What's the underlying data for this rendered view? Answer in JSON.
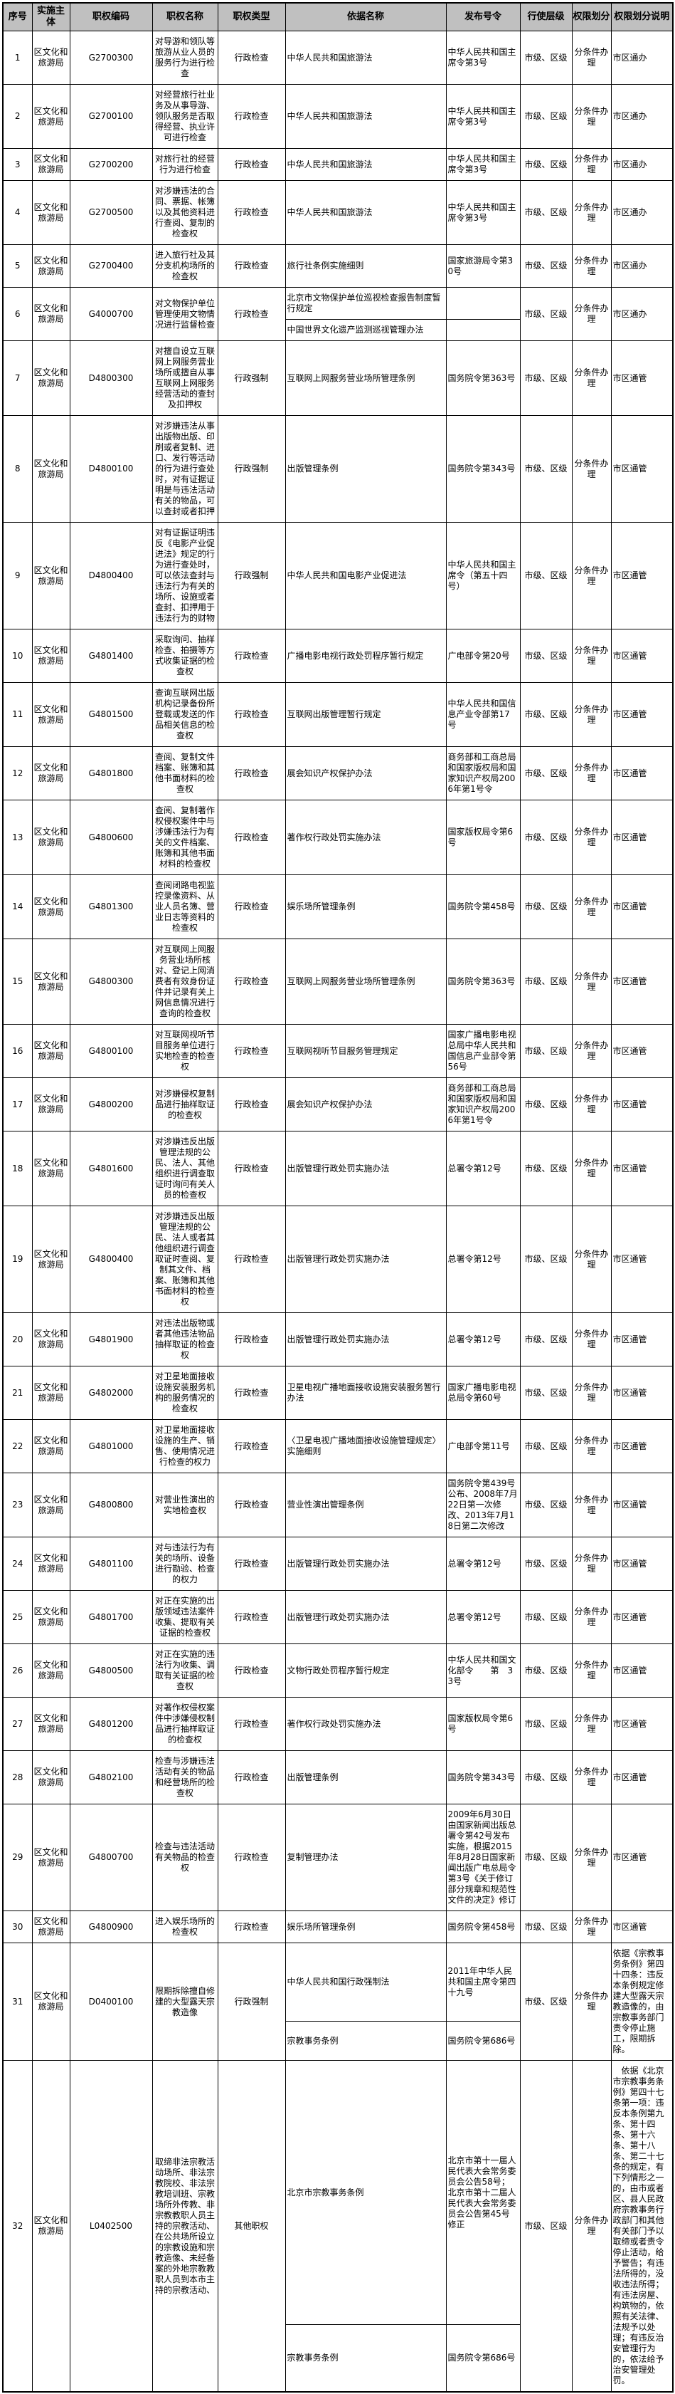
{
  "colors": {
    "header_bg": "#c0c0c0",
    "border": "#000000",
    "text": "#000000",
    "page_bg": "#ffffff"
  },
  "table": {
    "columns": [
      "序号",
      "实施主体",
      "职权编码",
      "职权名称",
      "职权类型",
      "依据名称",
      "发布号令",
      "行使层级",
      "权限划分",
      "权限划分说明"
    ],
    "rows": [
      {
        "no": "1",
        "agency": "区文化和旅游局",
        "code": "G2700300",
        "name": "对导游和领队等旅游从业人员的服务行为进行检查",
        "type": "行政检查",
        "basis": [
          {
            "name": "中华人民共和国旅游法",
            "order": "中华人民共和国主席令第3号"
          }
        ],
        "level": "市级、区级",
        "division": "分条件办理",
        "note": "市区通办"
      },
      {
        "no": "2",
        "agency": "区文化和旅游局",
        "code": "G2700100",
        "name": "对经营旅行社业务及从事导游、领队服务是否取得经营、执业许可进行检查",
        "type": "行政检查",
        "basis": [
          {
            "name": "中华人民共和国旅游法",
            "order": "中华人民共和国主席令第3号"
          }
        ],
        "level": "市级、区级",
        "division": "分条件办理",
        "note": "市区通办"
      },
      {
        "no": "3",
        "agency": "区文化和旅游局",
        "code": "G2700200",
        "name": "对旅行社的经营行为进行检查",
        "type": "行政检查",
        "basis": [
          {
            "name": "中华人民共和国旅游法",
            "order": "中华人民共和国主席令第3号"
          }
        ],
        "level": "市级、区级",
        "division": "分条件办理",
        "note": "市区通办"
      },
      {
        "no": "4",
        "agency": "区文化和旅游局",
        "code": "G2700500",
        "name": "对涉嫌违法的合同、票据、帐簿以及其他资料进行查阅、复制的检查权",
        "type": "行政检查",
        "basis": [
          {
            "name": "中华人民共和国旅游法",
            "order": "中华人民共和国主席令第3号"
          }
        ],
        "level": "市级、区级",
        "division": "分条件办理",
        "note": "市区通办"
      },
      {
        "no": "5",
        "agency": "区文化和旅游局",
        "code": "G2700400",
        "name": "进入旅行社及其分支机构场所的检查权",
        "type": "行政检查",
        "basis": [
          {
            "name": "旅行社条例实施细则",
            "order": "国家旅游局令第30号"
          }
        ],
        "level": "市级、区级",
        "division": "分条件办理",
        "note": "市区通办"
      },
      {
        "no": "6",
        "agency": "区文化和旅游局",
        "code": "G4000700",
        "name": "对文物保护单位管理使用文物情况进行监督检查",
        "type": "行政检查",
        "basis": [
          {
            "name": "北京市文物保护单位巡视检查报告制度暂行规定",
            "order": ""
          },
          {
            "name": "中国世界文化遗产监测巡视管理办法",
            "order": ""
          }
        ],
        "level": "市级、区级",
        "division": "分条件办理",
        "note": "市区通办"
      },
      {
        "no": "7",
        "agency": "区文化和旅游局",
        "code": "D4800300",
        "name": "对擅自设立互联网上网服务营业场所或擅自从事互联网上网服务经营活动的查封及扣押权",
        "type": "行政强制",
        "basis": [
          {
            "name": "互联网上网服务营业场所管理条例",
            "order": "国务院令第363号"
          }
        ],
        "level": "市级、区级",
        "division": "分条件办理",
        "note": "市区通管"
      },
      {
        "no": "8",
        "agency": "区文化和旅游局",
        "code": "D4800100",
        "name": "对涉嫌违法从事出版物出版、印刷或者复制、进口、发行等活动的行为进行查处时，对有证据证明是与违法活动有关的物品，可以查封或者扣押",
        "type": "行政强制",
        "basis": [
          {
            "name": "出版管理条例",
            "order": "国务院令第343号"
          }
        ],
        "level": "市级、区级",
        "division": "分条件办理",
        "note": "市区通管"
      },
      {
        "no": "9",
        "agency": "区文化和旅游局",
        "code": "D4800400",
        "name": "对有证据证明违反《电影产业促进法》规定的行为进行查处时，可以依法查封与违法行为有关的场所、设施或者查封、扣押用于违法行为的财物",
        "type": "行政强制",
        "basis": [
          {
            "name": "中华人民共和国电影产业促进法",
            "order": "中华人民共和国主席令（第五十四号）"
          }
        ],
        "level": "市级、区级",
        "division": "分条件办理",
        "note": "市区通管"
      },
      {
        "no": "10",
        "agency": "区文化和旅游局",
        "code": "G4801400",
        "name": "采取询问、抽样检查、拍摄等方式收集证据的检查权",
        "type": "行政检查",
        "basis": [
          {
            "name": "广播电影电视行政处罚程序暂行规定",
            "order": "广电部令第20号"
          }
        ],
        "level": "市级、区级",
        "division": "分条件办理",
        "note": "市区通管"
      },
      {
        "no": "11",
        "agency": "区文化和旅游局",
        "code": "G4801500",
        "name": "查询互联网出版机构记录备份所登载或发送的作品相关信息的检查权",
        "type": "行政检查",
        "basis": [
          {
            "name": "互联网出版管理暂行规定",
            "order": "中华人民共和国信息产业令部第17　号"
          }
        ],
        "level": "市级、区级",
        "division": "分条件办理",
        "note": "市区通管"
      },
      {
        "no": "12",
        "agency": "区文化和旅游局",
        "code": "G4801800",
        "name": "查阅、复制文件档案、账簿和其他书面材料的检查权",
        "type": "行政检查",
        "basis": [
          {
            "name": "展会知识产权保护办法",
            "order": "商务部和工商总局和国家版权局和国家知识产权局2006年第1号令"
          }
        ],
        "level": "市级、区级",
        "division": "分条件办理",
        "note": "市区通管"
      },
      {
        "no": "13",
        "agency": "区文化和旅游局",
        "code": "G4800600",
        "name": "查阅、复制著作权侵权案件中与涉嫌违法行为有关的文件档案、账簿和其他书面材料的检查权",
        "type": "行政检查",
        "basis": [
          {
            "name": "著作权行政处罚实施办法",
            "order": "国家版权局令第6号"
          }
        ],
        "level": "市级、区级",
        "division": "分条件办理",
        "note": "市区通管"
      },
      {
        "no": "14",
        "agency": "区文化和旅游局",
        "code": "G4801300",
        "name": "查阅闭路电视监控录像资料、从业人员名簿、营业日志等资料的检查权",
        "type": "行政检查",
        "basis": [
          {
            "name": "娱乐场所管理条例",
            "order": "国务院令第458号"
          }
        ],
        "level": "市级、区级",
        "division": "分条件办理",
        "note": "市区通管"
      },
      {
        "no": "15",
        "agency": "区文化和旅游局",
        "code": "G4800300",
        "name": "对互联网上网服务营业场所核对、登记上网消费者有效身份证件并记录有关上网信息情况进行查询的检查权",
        "type": "行政检查",
        "basis": [
          {
            "name": "互联网上网服务营业场所管理条例",
            "order": "国务院令第363号"
          }
        ],
        "level": "市级、区级",
        "division": "分条件办理",
        "note": "市区通管"
      },
      {
        "no": "16",
        "agency": "区文化和旅游局",
        "code": "G4800100",
        "name": "对互联网视听节目服务单位进行实地检查的检查权",
        "type": "行政检查",
        "basis": [
          {
            "name": "互联网视听节目服务管理规定",
            "order": "国家广播电影电视总局中华人民共和国信息产业部令第56号"
          }
        ],
        "level": "市级、区级",
        "division": "分条件办理",
        "note": "市区通管"
      },
      {
        "no": "17",
        "agency": "区文化和旅游局",
        "code": "G4800200",
        "name": "对涉嫌侵权复制品进行抽样取证的检查权",
        "type": "行政检查",
        "basis": [
          {
            "name": "展会知识产权保护办法",
            "order": "商务部和工商总局和国家版权局和国家知识产权局2006年第1号令"
          }
        ],
        "level": "市级、区级",
        "division": "分条件办理",
        "note": "市区通管"
      },
      {
        "no": "18",
        "agency": "区文化和旅游局",
        "code": "G4801600",
        "name": "对涉嫌违反出版管理法规的公民、法人、其他组织进行调查取证时询问有关人员的检查权",
        "type": "行政检查",
        "basis": [
          {
            "name": "出版管理行政处罚实施办法",
            "order": "总署令第12号"
          }
        ],
        "level": "市级、区级",
        "division": "分条件办理",
        "note": "市区通管"
      },
      {
        "no": "19",
        "agency": "区文化和旅游局",
        "code": "G4800400",
        "name": "对涉嫌违反出版管理法规的公民、法人或者其他组织进行调查取证时查阅、复制其文件、档案、账簿和其他书面材料的检查权",
        "type": "行政检查",
        "basis": [
          {
            "name": "出版管理行政处罚实施办法",
            "order": "总署令第12号"
          }
        ],
        "level": "市级、区级",
        "division": "分条件办理",
        "note": "市区通管"
      },
      {
        "no": "20",
        "agency": "区文化和旅游局",
        "code": "G4801900",
        "name": "对违法出版物或者其他违法物品抽样取证的检查权",
        "type": "行政检查",
        "basis": [
          {
            "name": "出版管理行政处罚实施办法",
            "order": "总署令第12号"
          }
        ],
        "level": "市级、区级",
        "division": "分条件办理",
        "note": "市区通管"
      },
      {
        "no": "21",
        "agency": "区文化和旅游局",
        "code": "G4802000",
        "name": "对卫星地面接收设施安装服务机构的服务情况的检查权",
        "type": "行政检查",
        "basis": [
          {
            "name": "卫星电视广播地面接收设施安装服务暂行办法",
            "order": "国家广播电影电视总局令第60号"
          }
        ],
        "level": "市级、区级",
        "division": "分条件办理",
        "note": "市区通管"
      },
      {
        "no": "22",
        "agency": "区文化和旅游局",
        "code": "G4801000",
        "name": "对卫星地面接收设施的生产、销售、使用情况进行检查的权力",
        "type": "行政检查",
        "basis": [
          {
            "name": "〈卫星电视广播地面接收设施管理规定〉实施细则",
            "order": "广电部令第11号"
          }
        ],
        "level": "市级、区级",
        "division": "分条件办理",
        "note": "市区通管"
      },
      {
        "no": "23",
        "agency": "区文化和旅游局",
        "code": "G4800800",
        "name": "对营业性演出的实地检查权",
        "type": "行政检查",
        "basis": [
          {
            "name": "营业性演出管理条例",
            "order": "国务院令第439号公布、2008年7月22日第一次修改、2013年7月18日第二次修改"
          }
        ],
        "level": "市级、区级",
        "division": "分条件办理",
        "note": "市区通管"
      },
      {
        "no": "24",
        "agency": "区文化和旅游局",
        "code": "G4801100",
        "name": "对与违法行为有关的场所、设备进行勘验、检查的权力",
        "type": "行政检查",
        "basis": [
          {
            "name": "出版管理行政处罚实施办法",
            "order": "总署令第12号"
          }
        ],
        "level": "市级、区级",
        "division": "分条件办理",
        "note": "市区通管"
      },
      {
        "no": "25",
        "agency": "区文化和旅游局",
        "code": "G4801700",
        "name": "对正在实施的出版领域违法案件收集、提取有关证据的检查权",
        "type": "行政检查",
        "basis": [
          {
            "name": "出版管理行政处罚实施办法",
            "order": "总署令第12号"
          }
        ],
        "level": "市级、区级",
        "division": "分条件办理",
        "note": "市区通管"
      },
      {
        "no": "26",
        "agency": "区文化和旅游局",
        "code": "G4800500",
        "name": "对正在实施的违法行为收集、调取有关证据的检查权",
        "type": "行政检查",
        "basis": [
          {
            "name": "文物行政处罚程序暂行规定",
            "order": "中华人民共和国文化部令　　第　33号"
          }
        ],
        "level": "市级、区级",
        "division": "分条件办理",
        "note": "市区通管"
      },
      {
        "no": "27",
        "agency": "区文化和旅游局",
        "code": "G4801200",
        "name": "对著作权侵权案件中涉嫌侵权制品进行抽样取证的检查权",
        "type": "行政检查",
        "basis": [
          {
            "name": "著作权行政处罚实施办法",
            "order": "国家版权局令第6号"
          }
        ],
        "level": "市级、区级",
        "division": "分条件办理",
        "note": "市区通管"
      },
      {
        "no": "28",
        "agency": "区文化和旅游局",
        "code": "G4802100",
        "name": "检查与涉嫌违法活动有关的物品和经营场所的检查权",
        "type": "行政检查",
        "basis": [
          {
            "name": "出版管理条例",
            "order": "国务院令第343号"
          }
        ],
        "level": "市级、区级",
        "division": "分条件办理",
        "note": "市区通管"
      },
      {
        "no": "29",
        "agency": "区文化和旅游局",
        "code": "G4800700",
        "name": "检查与违法活动有关物品的检查权",
        "type": "行政检查",
        "basis": [
          {
            "name": "复制管理办法",
            "order": "2009年6月30日由国家新闻出版总署令第42号发布实施，根据2015年8月28日国家新闻出版广电总局令第3号《关于修订部分规章和规范性文件的决定》修订"
          }
        ],
        "level": "市级、区级",
        "division": "分条件办理",
        "note": "市区通管"
      },
      {
        "no": "30",
        "agency": "区文化和旅游局",
        "code": "G4800900",
        "name": "进入娱乐场所的检查权",
        "type": "行政检查",
        "basis": [
          {
            "name": "娱乐场所管理条例",
            "order": "国务院令第458号"
          }
        ],
        "level": "市级、区级",
        "division": "分条件办理",
        "note": "市区通管"
      },
      {
        "no": "31",
        "agency": "区文化和旅游局",
        "code": "D0400100",
        "name": "限期拆除擅自修建的大型露天宗教造像",
        "type": "行政强制",
        "basis": [
          {
            "name": "中华人民共和国行政强制法",
            "order": "2011年中华人民共和国主席令第四十九号"
          },
          {
            "name": "宗教事务条例",
            "order": "国务院令第686号"
          }
        ],
        "level": "市级、区级",
        "division": "分条件办理",
        "note": "依据《宗教事务条例》第四十四条：违反本条例规定修建大型露天宗教造像的，由宗教事务部门责令停止施工，限期拆除。"
      },
      {
        "no": "32",
        "agency": "区文化和旅游局",
        "code": "L0402500",
        "name": "取缔非法宗教活动场所、非法宗教院校、非法宗教培训班、宗教场所外传教、非宗教教职人员主持的宗教活动、在公共场所设立的宗教设施和宗教造像、未经备案的外地宗教教职人员到本市主持的宗教活动、",
        "type": "其他职权",
        "basis": [
          {
            "name": "北京市宗教事务条例",
            "order": "北京市第十一届人民代表大会常务委员会公告58号；北京市第十二届人民代表大会常务委员会公告第45号修正"
          },
          {
            "name": "宗教事务条例",
            "order": "国务院令第686号"
          }
        ],
        "level": "市级、区级",
        "division": "分条件办理",
        "note": "　依据《北京市宗教事务条例》第四十七条第一项：违反本条例第九条、第十四条、第十六条、第十八条、第二十七条的规定，有下列情形之一的，由市或者区、县人民政府宗教事务行政部门和其他有关部门予以取缔或者责令停止活动，给予警告；有违法所得的，没收违法所得；有违法房屋、构筑物的，依照有关法律、法规予以处理；有违反治安管理行为的，依法给予治安管理处罚。"
      }
    ]
  }
}
